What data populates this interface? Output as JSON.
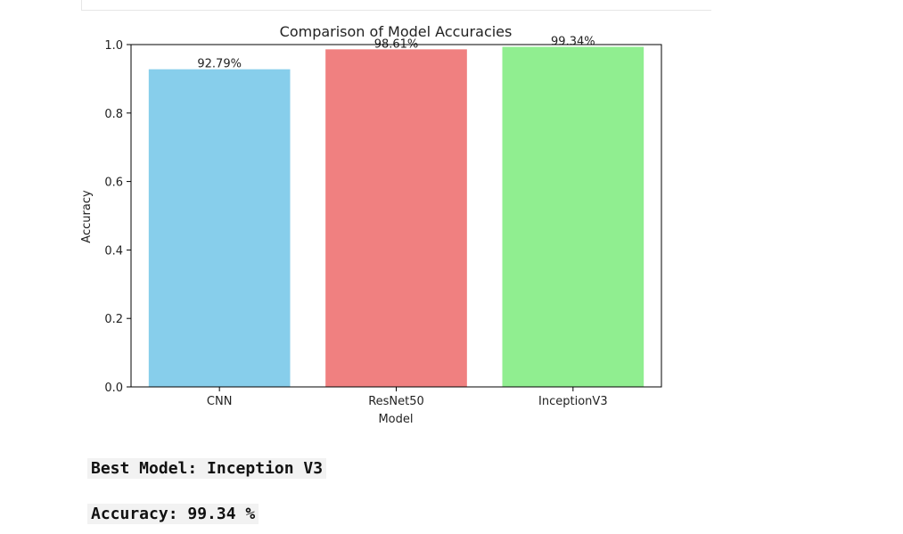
{
  "colors": {
    "CNN": "#87ceeb",
    "ResNet50": "#f08080",
    "InceptionV3": "#90ee90"
  },
  "chart_data": {
    "type": "bar",
    "title": "Comparison of Model Accuracies",
    "xlabel": "Model",
    "ylabel": "Accuracy",
    "categories": [
      "CNN",
      "ResNet50",
      "InceptionV3"
    ],
    "values": [
      0.9279,
      0.9861,
      0.9934
    ],
    "data_labels": [
      "92.79%",
      "98.61%",
      "99.34%"
    ],
    "bar_colors": [
      "#87ceeb",
      "#f08080",
      "#90ee90"
    ],
    "ylim": [
      0,
      1.0
    ],
    "yticks": [
      "0.0",
      "0.2",
      "0.4",
      "0.6",
      "0.8",
      "1.0"
    ],
    "grid": false
  },
  "output": {
    "best_model_line": "Best Model: Inception V3",
    "accuracy_line": "Accuracy: 99.34 %"
  }
}
